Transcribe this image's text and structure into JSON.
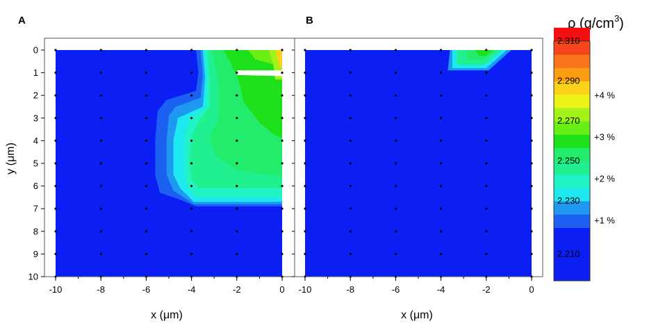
{
  "chart_data": [
    {
      "type": "heatmap",
      "panel_label": "A",
      "xlabel": "x (μm)",
      "ylabel": "y (μm)",
      "xlim": [
        -10,
        0
      ],
      "ylim": [
        10,
        0
      ],
      "xticks": [
        "-10",
        "-8",
        "-6",
        "-4",
        "-2",
        "0"
      ],
      "yticks": [
        "0",
        "1",
        "2",
        "3",
        "4",
        "5",
        "6",
        "7",
        "8",
        "9",
        "10"
      ],
      "density_contours": [
        {
          "level": 2.215,
          "points": [
            [
              -3.8,
              0
            ],
            [
              0,
              0
            ],
            [
              0,
              6.9
            ],
            [
              -3.8,
              6.9
            ],
            [
              -4.5,
              6.6
            ],
            [
              -5.4,
              6.3
            ],
            [
              -5.6,
              5.5
            ],
            [
              -5.6,
              4.0
            ],
            [
              -5.5,
              2.7
            ],
            [
              -5.1,
              2.2
            ],
            [
              -3.8,
              1.8
            ],
            [
              -3.7,
              1.0
            ]
          ]
        },
        {
          "level": 2.225,
          "points": [
            [
              -3.6,
              0
            ],
            [
              0,
              0
            ],
            [
              0,
              6.8
            ],
            [
              -3.9,
              6.8
            ],
            [
              -4.8,
              6.2
            ],
            [
              -5.1,
              5.5
            ],
            [
              -5.1,
              4.0
            ],
            [
              -5.0,
              2.9
            ],
            [
              -4.7,
              2.5
            ],
            [
              -3.6,
              2.1
            ],
            [
              -3.5,
              1.1
            ]
          ]
        },
        {
          "level": 2.235,
          "points": [
            [
              -3.5,
              0
            ],
            [
              0,
              0
            ],
            [
              0,
              6.7
            ],
            [
              -3.9,
              6.7
            ],
            [
              -4.5,
              6.1
            ],
            [
              -4.8,
              5.5
            ],
            [
              -4.8,
              4.0
            ],
            [
              -4.6,
              3.0
            ],
            [
              -3.5,
              2.5
            ],
            [
              -3.4,
              1.2
            ]
          ]
        },
        {
          "level": 2.245,
          "points": [
            [
              -3.4,
              0
            ],
            [
              0,
              0
            ],
            [
              0,
              6.5
            ],
            [
              -3.8,
              6.5
            ],
            [
              -4.2,
              6.0
            ],
            [
              -4.3,
              5.5
            ],
            [
              -4.3,
              4.0
            ],
            [
              -4.1,
              3.0
            ],
            [
              -3.4,
              2.6
            ],
            [
              -3.3,
              1.3
            ]
          ]
        },
        {
          "level": 2.255,
          "points": [
            [
              -3.3,
              0
            ],
            [
              0,
              0
            ],
            [
              0,
              6.1
            ],
            [
              -3.7,
              6.1
            ],
            [
              -4.0,
              5.7
            ],
            [
              -4.1,
              5.0
            ],
            [
              -4.0,
              3.8
            ],
            [
              -3.6,
              3.0
            ],
            [
              -3.2,
              2.5
            ],
            [
              -3.2,
              1.3
            ]
          ]
        },
        {
          "level": 2.265,
          "points": [
            [
              -3.1,
              0
            ],
            [
              0,
              0
            ],
            [
              0,
              5.6
            ],
            [
              -2.0,
              5.3
            ],
            [
              -3.0,
              4.6
            ],
            [
              -3.2,
              3.8
            ],
            [
              -2.8,
              3.0
            ],
            [
              -2.8,
              1.4
            ]
          ]
        },
        {
          "level": 2.275,
          "points": [
            [
              -2.6,
              0
            ],
            [
              0,
              0
            ],
            [
              0,
              3.9
            ],
            [
              -0.4,
              3.7
            ],
            [
              -1.0,
              3.2
            ],
            [
              -1.7,
              2.3
            ],
            [
              -1.9,
              1.4
            ],
            [
              -2.3,
              0.5
            ]
          ]
        },
        {
          "level": 2.285,
          "points": [
            [
              -1.5,
              0
            ],
            [
              0,
              0
            ],
            [
              0,
              0.7
            ],
            [
              -0.5,
              0.6
            ],
            [
              -1.2,
              0.4
            ]
          ]
        },
        {
          "level": 2.295,
          "points": [
            [
              -0.6,
              0
            ],
            [
              0,
              0
            ],
            [
              0,
              1.3
            ],
            [
              -0.3,
              1.3
            ],
            [
              -0.4,
              0.6
            ]
          ]
        },
        {
          "level": 2.315,
          "points": [
            [
              -0.3,
              0
            ],
            [
              0,
              0
            ],
            [
              0,
              0.9
            ],
            [
              -0.15,
              0.6
            ]
          ]
        }
      ],
      "white_highlight": [
        [
          -2.0,
          0.9
        ],
        [
          0,
          0.9
        ],
        [
          0,
          1.15
        ],
        [
          -2.0,
          1.1
        ]
      ]
    },
    {
      "type": "heatmap",
      "panel_label": "B",
      "xlabel": "x (μm)",
      "ylabel": "",
      "xlim": [
        -10,
        0
      ],
      "ylim": [
        10,
        0
      ],
      "xticks": [
        "-10",
        "-8",
        "-6",
        "-4",
        "-2",
        "0"
      ],
      "yticks": [],
      "density_contours": [
        {
          "level": 2.225,
          "points": [
            [
              -3.6,
              0
            ],
            [
              -0.9,
              0
            ],
            [
              -1.9,
              0.9
            ],
            [
              -3.7,
              0.9
            ]
          ]
        },
        {
          "level": 2.235,
          "points": [
            [
              -3.5,
              0
            ],
            [
              -1.1,
              0
            ],
            [
              -2.0,
              0.8
            ],
            [
              -3.5,
              0.8
            ]
          ]
        },
        {
          "level": 2.255,
          "points": [
            [
              -3.3,
              0
            ],
            [
              -1.3,
              0
            ],
            [
              -2.1,
              0.65
            ],
            [
              -3.3,
              0.65
            ]
          ]
        },
        {
          "level": 2.265,
          "points": [
            [
              -2.9,
              0
            ],
            [
              -1.5,
              0
            ],
            [
              -2.2,
              0.45
            ],
            [
              -2.8,
              0.45
            ]
          ]
        },
        {
          "level": 2.275,
          "points": [
            [
              -2.5,
              0
            ],
            [
              -1.7,
              0
            ],
            [
              -2.0,
              0.25
            ],
            [
              -2.3,
              0.25
            ]
          ]
        }
      ]
    }
  ],
  "colorbar": {
    "title": "ρ (g/cm",
    "title_sup": "3",
    "title_close": ")",
    "levels": [
      2.205,
      2.215,
      2.225,
      2.235,
      2.245,
      2.255,
      2.265,
      2.275,
      2.285,
      2.295,
      2.305,
      2.315
    ],
    "colors": [
      "#0b1ff5",
      "#1c60f2",
      "#1f99ef",
      "#1ee9f0",
      "#22f3c4",
      "#20f08f",
      "#23ec6c",
      "#1ee11c",
      "#69ef14",
      "#a3f31a",
      "#eef219",
      "#fcd11a",
      "#fa9d12",
      "#f8741b",
      "#f5451a",
      "#f60e10"
    ],
    "tick_labels": [
      "2.210",
      "2.230",
      "2.250",
      "2.270",
      "2.290",
      "2.310"
    ],
    "percent_labels": [
      "+1 %",
      "+2 %",
      "+3 %",
      "+4 %"
    ]
  }
}
